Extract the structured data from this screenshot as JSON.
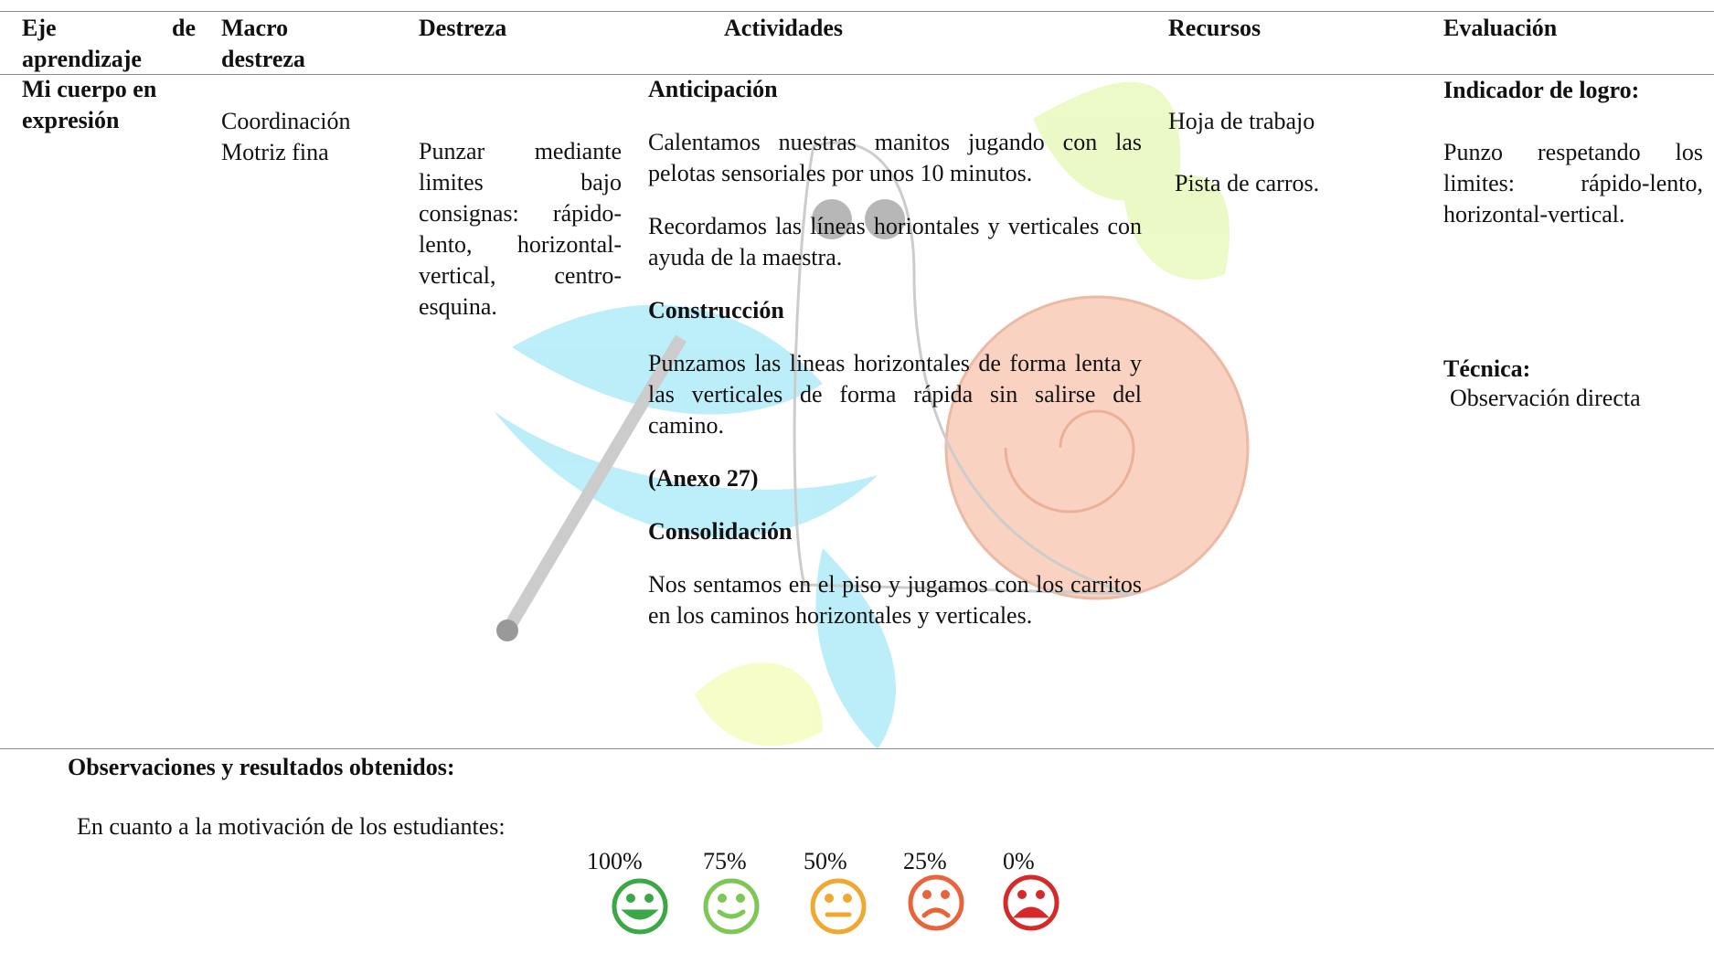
{
  "table": {
    "headers": [
      "Eje de aprendizaje",
      "Macro destreza",
      "Destreza",
      "Actividades",
      "Recursos",
      "Evaluación"
    ],
    "row": {
      "eje": "Mi cuerpo en expresión",
      "macro": "Coordinación Motriz fina",
      "destreza": "Punzar mediante limites bajo consignas: rápido-lento, horizontal-vertical, centro-esquina.",
      "actividades": [
        {
          "style": "heading",
          "text": "Anticipación"
        },
        {
          "style": "text",
          "text": "Calentamos nuestras manitos jugando con las pelotas sensoriales por unos 10 minutos."
        },
        {
          "style": "text",
          "text": "Recordamos las líneas horiontales y verticales con ayuda de la maestra."
        },
        {
          "style": "heading",
          "text": "Construcción"
        },
        {
          "style": "text",
          "text": "Punzamos las lineas horizontales de forma lenta y las verticales de forma rápida sin salirse del camino."
        },
        {
          "style": "heading",
          "text": "(Anexo 27)"
        },
        {
          "style": "heading",
          "text": "Consolidación"
        },
        {
          "style": "text",
          "text": "Nos sentamos en el piso y jugamos con los carritos en los caminos horizontales y verticales."
        }
      ],
      "recursos": [
        "Hoja de trabajo",
        "Pista de carros."
      ],
      "evaluacion": {
        "indicator_title": "Indicador de logro:",
        "indicator": "Punzo respetando los limites: rápido-lento, horizontal-vertical.",
        "technique_title": "Técnica:",
        "technique": "Observación directa"
      }
    }
  },
  "observations": {
    "title": "Observaciones y resultados obtenidos:",
    "text": "En cuanto a la motivación de los estudiantes:",
    "scale": [
      "100%",
      "75%",
      "50%",
      "25%",
      "0%"
    ]
  }
}
